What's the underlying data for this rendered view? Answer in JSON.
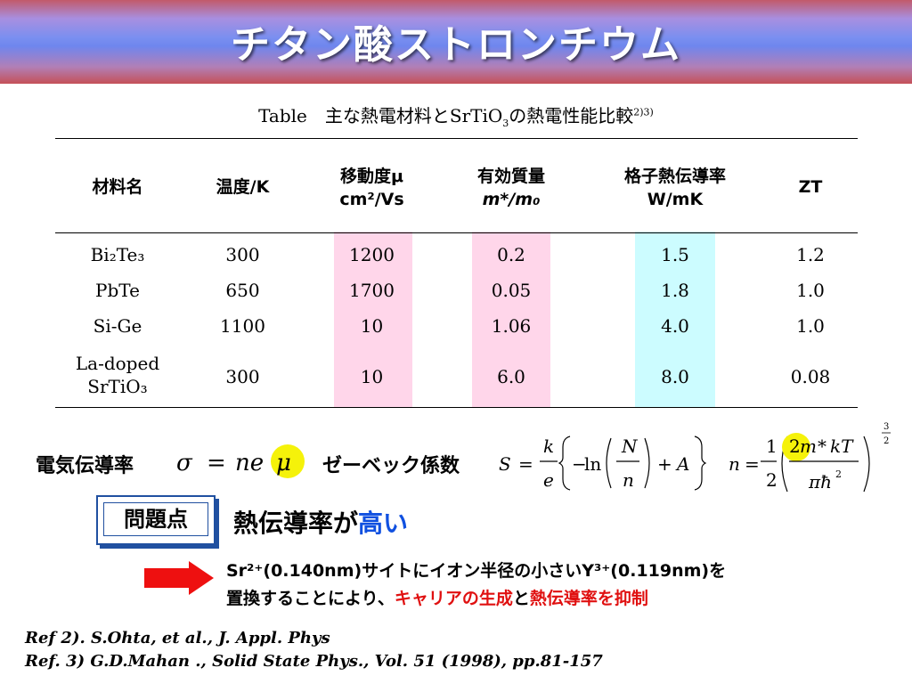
{
  "slide": {
    "title": "チタン酸ストロンチウム",
    "caption_prefix": "Table　主な熱電材料とSrTiO",
    "caption_sub": "3",
    "caption_suffix": "の熱電性能比較",
    "caption_sup": "2)3)"
  },
  "table": {
    "headers": [
      {
        "l1": "材料名",
        "l2": ""
      },
      {
        "l1": "温度/K",
        "l2": ""
      },
      {
        "l1": "移動度μ",
        "l2": "cm²/Vs"
      },
      {
        "l1": "有効質量",
        "l2": "m*/m₀"
      },
      {
        "l1": "格子熱伝導率",
        "l2": "W/mK"
      },
      {
        "l1": "ZT",
        "l2": ""
      }
    ],
    "rows": [
      {
        "material": "Bi₂Te₃",
        "temp": "300",
        "mobility": "1200",
        "mass": "0.2",
        "kappa": "1.5",
        "zt": "1.2"
      },
      {
        "material": "PbTe",
        "temp": "650",
        "mobility": "1700",
        "mass": "0.05",
        "kappa": "1.8",
        "zt": "1.0"
      },
      {
        "material": "Si-Ge",
        "temp": "1100",
        "mobility": "10",
        "mass": "1.06",
        "kappa": "4.0",
        "zt": "1.0"
      },
      {
        "material_l1": "La-doped",
        "material_l2": "SrTiO₃",
        "temp": "300",
        "mobility": "10",
        "mass": "6.0",
        "kappa": "8.0",
        "zt": "0.08"
      }
    ]
  },
  "formulas": {
    "conductivity_label": "電気伝導率",
    "seebeck_label": "ゼーベック係数"
  },
  "issue": {
    "box_label": "問題点",
    "text_prefix": "熱伝導率が",
    "text_highlight": "高い"
  },
  "note": {
    "line1": "Sr²⁺(0.140nm)サイトにイオン半径の小さいY³⁺(0.119nm)を",
    "line2_prefix": "置換することにより、",
    "line2_red1": "キャリアの生成",
    "line2_mid": "と",
    "line2_red2": "熱伝導率を抑制"
  },
  "references": [
    "Ref 2). S.Ohta, et al., J. Appl. Phys",
    "Ref. 3) G.D.Mahan ., Solid State Phys., Vol. 51 (1998), pp.81-157"
  ],
  "colors": {
    "highlight_pink": "#ffd6ea",
    "highlight_cyan": "#ccfcff",
    "emphasis_red": "#e01010",
    "emphasis_blue": "#1050e0",
    "mu_circle": "#f5f20a"
  }
}
